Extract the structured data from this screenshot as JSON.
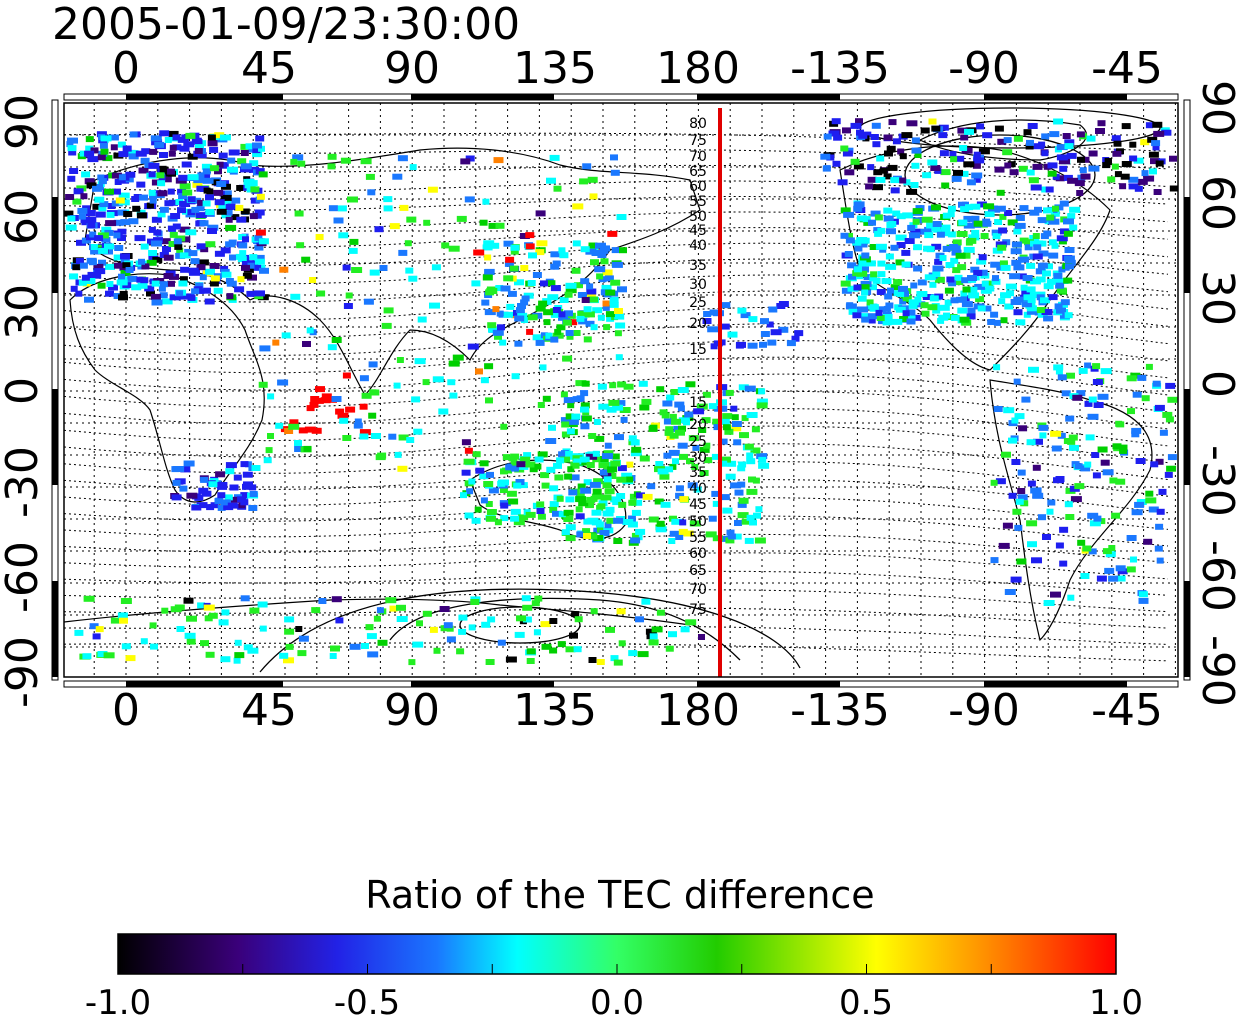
{
  "title": "2005-01-09/23:30:00",
  "map": {
    "lon_ticks": [
      "0",
      "45",
      "90",
      "135",
      "180",
      "-135",
      "-90",
      "-45"
    ],
    "lat_ticks": [
      "90",
      "60",
      "30",
      "0",
      "-30",
      "-60",
      "-90"
    ],
    "contour_labels_north": [
      "80",
      "75",
      "70",
      "65",
      "60",
      "55",
      "50",
      "45",
      "40",
      "35",
      "30",
      "25",
      "20",
      "15"
    ],
    "contour_labels_south": [
      "15",
      "20",
      "25",
      "30",
      "35",
      "40",
      "45",
      "50",
      "55",
      "60",
      "65",
      "70",
      "75"
    ],
    "meridian_line_color": "#e00000",
    "grid": "dotted"
  },
  "colorbar": {
    "title": "Ratio of the TEC difference",
    "ticks": [
      "-1.0",
      "-0.5",
      "0.0",
      "0.5",
      "1.0"
    ],
    "range": [
      -1.0,
      1.0
    ],
    "colors": [
      "#000000",
      "#3a007a",
      "#1e1ef0",
      "#1a78ff",
      "#00ffff",
      "#22ee22",
      "#00d000",
      "#ffff00",
      "#ff8000",
      "#ff0000"
    ]
  }
}
